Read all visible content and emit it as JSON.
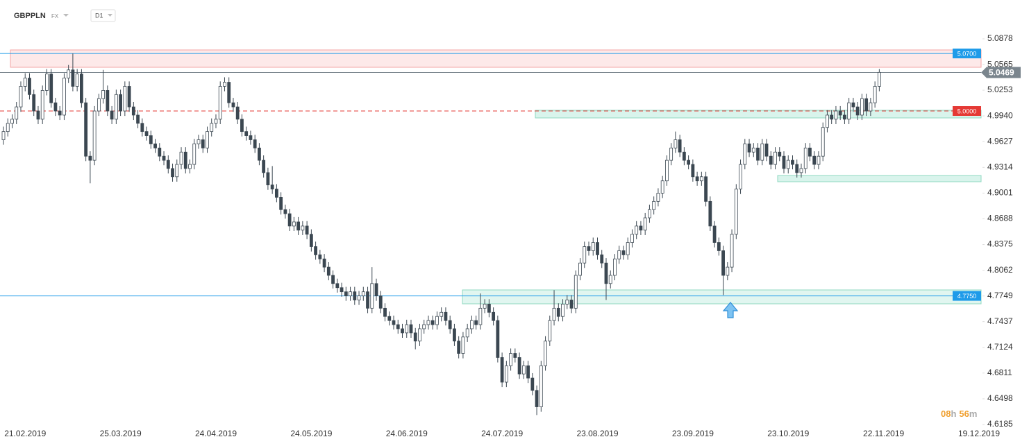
{
  "header": {
    "symbol": "GBPPLN",
    "market": "FX",
    "interval": "D1"
  },
  "chart_data": {
    "type": "candlestick",
    "categories": [
      null,
      null,
      null,
      null,
      null,
      "21.02.2019",
      null,
      null,
      null,
      null,
      null,
      null,
      null,
      null,
      null,
      null,
      null,
      null,
      null,
      null,
      null,
      null,
      null,
      null,
      null,
      null,
      null,
      "25.03.2019",
      null,
      null,
      null,
      null,
      null,
      null,
      null,
      null,
      null,
      null,
      null,
      null,
      null,
      null,
      null,
      null,
      null,
      null,
      null,
      null,
      null,
      "24.04.2019",
      null,
      null,
      null,
      null,
      null,
      null,
      null,
      null,
      null,
      null,
      null,
      null,
      null,
      null,
      null,
      null,
      null,
      null,
      null,
      null,
      null,
      "24.05.2019",
      null,
      null,
      null,
      null,
      null,
      null,
      null,
      null,
      null,
      null,
      null,
      null,
      null,
      null,
      null,
      null,
      null,
      null,
      null,
      null,
      null,
      "24.06.2019",
      null,
      null,
      null,
      null,
      null,
      null,
      null,
      null,
      null,
      null,
      null,
      null,
      null,
      null,
      null,
      null,
      null,
      null,
      null,
      null,
      null,
      "24.07.2019",
      null,
      null,
      null,
      null,
      null,
      null,
      null,
      null,
      null,
      null,
      null,
      null,
      null,
      null,
      null,
      null,
      null,
      null,
      null,
      null,
      null,
      "23.08.2019",
      null,
      null,
      null,
      null,
      null,
      null,
      null,
      null,
      null,
      null,
      null,
      null,
      null,
      null,
      null,
      null,
      null,
      null,
      null,
      null,
      null,
      "23.09.2019",
      null,
      null,
      null,
      null,
      null,
      null,
      null,
      null,
      null,
      null,
      null,
      null,
      null,
      null,
      null,
      null,
      null,
      null,
      null,
      null,
      null,
      "23.10.2019",
      null,
      null,
      null,
      null,
      null,
      null,
      null,
      null,
      null,
      null,
      null,
      null,
      null,
      null,
      null,
      null,
      null,
      null,
      null,
      null,
      null,
      "22.11.2019",
      null,
      null,
      null,
      null,
      null,
      null,
      null,
      null,
      null,
      null,
      null,
      null,
      null,
      null,
      null,
      null,
      null,
      null,
      null,
      null,
      null,
      "19.12.2019"
    ],
    "open": [
      4.965,
      4.975,
      4.985,
      4.99,
      5.005,
      5.03,
      5.04,
      5.02,
      5.0,
      4.99,
      5.025,
      5.045,
      5.01,
      5.0,
      4.995,
      5.04,
      5.05,
      5.03,
      5.045,
      5.01,
      4.945,
      4.94,
      5.0,
      5.015,
      5.025,
      5.0,
      4.99,
      5.02,
      5.0,
      5.03,
      5.005,
      4.995,
      4.985,
      4.975,
      4.97,
      4.96,
      4.955,
      4.945,
      4.94,
      4.93,
      4.92,
      4.935,
      4.95,
      4.93,
      4.935,
      4.96,
      4.965,
      4.955,
      4.975,
      4.985,
      4.99,
      5.03,
      5.035,
      5.01,
      5.005,
      4.99,
      4.975,
      4.97,
      4.965,
      4.955,
      4.94,
      4.925,
      4.91,
      4.905,
      4.895,
      4.88,
      4.875,
      4.86,
      4.865,
      4.855,
      4.86,
      4.85,
      4.835,
      4.825,
      4.82,
      4.81,
      4.8,
      4.79,
      4.785,
      4.78,
      4.775,
      4.78,
      4.77,
      4.775,
      4.78,
      4.76,
      4.79,
      4.775,
      4.76,
      4.75,
      4.745,
      4.74,
      4.735,
      4.73,
      4.74,
      4.73,
      4.72,
      4.735,
      4.74,
      4.745,
      4.74,
      4.75,
      4.755,
      4.745,
      4.735,
      4.72,
      4.705,
      4.725,
      4.735,
      4.745,
      4.74,
      4.76,
      4.765,
      4.755,
      4.745,
      4.7,
      4.67,
      4.69,
      4.705,
      4.7,
      4.68,
      4.69,
      4.675,
      4.66,
      4.64,
      4.69,
      4.72,
      4.745,
      4.76,
      4.75,
      4.765,
      4.77,
      4.76,
      4.8,
      4.815,
      4.835,
      4.83,
      4.84,
      4.825,
      4.815,
      4.79,
      4.8,
      4.82,
      4.83,
      4.825,
      4.84,
      4.85,
      4.86,
      4.855,
      4.87,
      4.88,
      4.89,
      4.9,
      4.915,
      4.94,
      4.955,
      4.965,
      4.95,
      4.94,
      4.935,
      4.92,
      4.915,
      4.92,
      4.89,
      4.86,
      4.84,
      4.83,
      4.8,
      4.81,
      4.85,
      4.905,
      4.935,
      4.96,
      4.95,
      4.955,
      4.94,
      4.96,
      4.945,
      4.935,
      4.95,
      4.945,
      4.93,
      4.94,
      4.935,
      4.925,
      4.93,
      4.955,
      4.945,
      4.935,
      4.945,
      4.98,
      4.995,
      4.99,
      5.0,
      4.995,
      4.99,
      5.01,
      5.005,
      4.995,
      5.015,
      5.0,
      5.01,
      5.03,
      null,
      null,
      null,
      null,
      null,
      null,
      null,
      null,
      null,
      null,
      null,
      null,
      null,
      null,
      null,
      null,
      null,
      null,
      null,
      null,
      null,
      null,
      null
    ],
    "high": [
      4.981,
      4.991,
      4.996,
      5.011,
      5.036,
      5.046,
      5.046,
      5.026,
      5.006,
      5.031,
      5.051,
      5.051,
      5.016,
      5.006,
      5.046,
      5.056,
      5.07,
      5.051,
      5.051,
      5.016,
      4.951,
      5.006,
      5.021,
      5.05,
      5.031,
      5.006,
      5.026,
      5.026,
      5.036,
      5.036,
      5.011,
      5.001,
      4.991,
      4.981,
      4.976,
      4.966,
      4.961,
      4.951,
      4.946,
      4.936,
      4.941,
      4.956,
      4.956,
      4.941,
      4.966,
      4.971,
      4.971,
      4.981,
      4.991,
      4.996,
      5.036,
      5.041,
      5.041,
      5.016,
      5.011,
      4.996,
      4.981,
      4.976,
      4.971,
      4.961,
      4.946,
      4.931,
      4.933,
      4.911,
      4.901,
      4.886,
      4.881,
      4.871,
      4.871,
      4.866,
      4.866,
      4.856,
      4.841,
      4.831,
      4.826,
      4.816,
      4.806,
      4.796,
      4.791,
      4.786,
      4.786,
      4.786,
      4.781,
      4.786,
      4.786,
      4.81,
      4.796,
      4.781,
      4.766,
      4.756,
      4.751,
      4.746,
      4.741,
      4.746,
      4.746,
      4.736,
      4.741,
      4.746,
      4.751,
      4.751,
      4.756,
      4.761,
      4.761,
      4.751,
      4.741,
      4.726,
      4.731,
      4.741,
      4.751,
      4.751,
      4.778,
      4.771,
      4.771,
      4.761,
      4.751,
      4.706,
      4.696,
      4.711,
      4.711,
      4.706,
      4.696,
      4.696,
      4.681,
      4.666,
      4.696,
      4.726,
      4.751,
      4.782,
      4.766,
      4.771,
      4.776,
      4.776,
      4.806,
      4.821,
      4.841,
      4.841,
      4.846,
      4.846,
      4.831,
      4.821,
      4.806,
      4.826,
      4.836,
      4.836,
      4.846,
      4.856,
      4.866,
      4.866,
      4.876,
      4.886,
      4.896,
      4.906,
      4.921,
      4.946,
      4.961,
      4.975,
      4.971,
      4.956,
      4.946,
      4.941,
      4.926,
      4.926,
      4.926,
      4.896,
      4.866,
      4.846,
      4.836,
      4.816,
      4.856,
      4.911,
      4.941,
      4.966,
      4.966,
      4.961,
      4.961,
      4.966,
      4.966,
      4.951,
      4.956,
      4.956,
      4.951,
      4.946,
      4.946,
      4.941,
      4.936,
      4.961,
      4.961,
      4.951,
      4.951,
      4.986,
      5.001,
      5.001,
      5.006,
      5.006,
      5.001,
      5.016,
      5.016,
      5.011,
      5.021,
      5.021,
      5.016,
      5.036,
      5.051,
      null,
      null,
      null,
      null,
      null,
      null,
      null,
      null,
      null,
      null,
      null,
      null,
      null,
      null,
      null,
      null,
      null,
      null,
      null,
      null,
      null,
      null,
      null
    ],
    "low": [
      4.959,
      4.969,
      4.979,
      4.984,
      4.999,
      5.024,
      5.014,
      4.994,
      4.984,
      4.984,
      5.019,
      5.004,
      4.994,
      4.989,
      4.989,
      5.034,
      5.024,
      5.024,
      5.004,
      4.939,
      4.912,
      4.934,
      4.994,
      5.009,
      4.994,
      4.984,
      4.984,
      4.994,
      4.994,
      4.999,
      4.989,
      4.979,
      4.969,
      4.964,
      4.954,
      4.949,
      4.939,
      4.934,
      4.924,
      4.914,
      4.914,
      4.929,
      4.924,
      4.924,
      4.929,
      4.954,
      4.949,
      4.949,
      4.969,
      4.979,
      4.984,
      5.024,
      5.004,
      4.999,
      4.984,
      4.969,
      4.964,
      4.959,
      4.949,
      4.934,
      4.919,
      4.904,
      4.899,
      4.889,
      4.874,
      4.869,
      4.854,
      4.854,
      4.849,
      4.849,
      4.844,
      4.829,
      4.819,
      4.814,
      4.804,
      4.794,
      4.784,
      4.779,
      4.774,
      4.769,
      4.769,
      4.764,
      4.764,
      4.769,
      4.754,
      4.754,
      4.769,
      4.754,
      4.744,
      4.739,
      4.734,
      4.729,
      4.724,
      4.724,
      4.724,
      4.71,
      4.714,
      4.729,
      4.734,
      4.734,
      4.734,
      4.744,
      4.739,
      4.729,
      4.714,
      4.699,
      4.699,
      4.719,
      4.729,
      4.734,
      4.734,
      4.754,
      4.749,
      4.739,
      4.694,
      4.664,
      4.664,
      4.684,
      4.694,
      4.674,
      4.674,
      4.669,
      4.654,
      4.63,
      4.634,
      4.684,
      4.714,
      4.739,
      4.744,
      4.744,
      4.759,
      4.754,
      4.754,
      4.794,
      4.809,
      4.824,
      4.824,
      4.819,
      4.809,
      4.77,
      4.784,
      4.794,
      4.814,
      4.819,
      4.819,
      4.834,
      4.844,
      4.849,
      4.849,
      4.864,
      4.874,
      4.884,
      4.894,
      4.909,
      4.934,
      4.949,
      4.944,
      4.934,
      4.929,
      4.914,
      4.909,
      4.909,
      4.884,
      4.854,
      4.834,
      4.824,
      4.776,
      4.794,
      4.804,
      4.844,
      4.899,
      4.929,
      4.944,
      4.944,
      4.934,
      4.934,
      4.939,
      4.929,
      4.929,
      4.939,
      4.924,
      4.924,
      4.929,
      4.919,
      4.919,
      4.924,
      4.939,
      4.929,
      4.929,
      4.939,
      4.974,
      4.984,
      4.984,
      4.989,
      4.984,
      4.984,
      4.999,
      4.989,
      4.989,
      4.994,
      4.994,
      5.004,
      5.024,
      null,
      null,
      null,
      null,
      null,
      null,
      null,
      null,
      null,
      null,
      null,
      null,
      null,
      null,
      null,
      null,
      null,
      null,
      null,
      null,
      null,
      null,
      null
    ],
    "close": [
      4.975,
      4.985,
      4.99,
      5.005,
      5.03,
      5.04,
      5.02,
      5.0,
      4.99,
      5.025,
      5.045,
      5.01,
      5.0,
      4.995,
      5.04,
      5.05,
      5.03,
      5.045,
      5.01,
      4.945,
      4.94,
      5.0,
      5.015,
      5.025,
      5.0,
      4.99,
      5.02,
      5.0,
      5.03,
      5.005,
      4.995,
      4.985,
      4.975,
      4.97,
      4.96,
      4.955,
      4.945,
      4.94,
      4.93,
      4.92,
      4.935,
      4.95,
      4.93,
      4.935,
      4.96,
      4.965,
      4.955,
      4.975,
      4.985,
      4.99,
      5.03,
      5.035,
      5.01,
      5.005,
      4.99,
      4.975,
      4.97,
      4.965,
      4.955,
      4.94,
      4.925,
      4.91,
      4.905,
      4.895,
      4.88,
      4.875,
      4.86,
      4.865,
      4.855,
      4.86,
      4.85,
      4.835,
      4.825,
      4.82,
      4.81,
      4.8,
      4.79,
      4.785,
      4.78,
      4.775,
      4.78,
      4.77,
      4.775,
      4.78,
      4.76,
      4.79,
      4.775,
      4.76,
      4.75,
      4.745,
      4.74,
      4.735,
      4.73,
      4.74,
      4.73,
      4.72,
      4.735,
      4.74,
      4.745,
      4.74,
      4.75,
      4.755,
      4.745,
      4.735,
      4.72,
      4.705,
      4.725,
      4.735,
      4.745,
      4.74,
      4.76,
      4.765,
      4.755,
      4.745,
      4.7,
      4.67,
      4.69,
      4.705,
      4.7,
      4.68,
      4.69,
      4.675,
      4.66,
      4.64,
      4.69,
      4.72,
      4.745,
      4.76,
      4.75,
      4.765,
      4.77,
      4.76,
      4.8,
      4.815,
      4.835,
      4.83,
      4.84,
      4.825,
      4.815,
      4.79,
      4.8,
      4.82,
      4.83,
      4.825,
      4.84,
      4.85,
      4.86,
      4.855,
      4.87,
      4.88,
      4.89,
      4.9,
      4.915,
      4.94,
      4.955,
      4.965,
      4.95,
      4.94,
      4.935,
      4.92,
      4.915,
      4.92,
      4.89,
      4.86,
      4.84,
      4.83,
      4.8,
      4.81,
      4.85,
      4.905,
      4.935,
      4.96,
      4.95,
      4.955,
      4.94,
      4.96,
      4.945,
      4.935,
      4.95,
      4.945,
      4.93,
      4.94,
      4.935,
      4.925,
      4.93,
      4.955,
      4.945,
      4.935,
      4.945,
      4.98,
      4.995,
      4.99,
      5.0,
      4.995,
      4.99,
      5.01,
      5.005,
      4.995,
      5.015,
      5.0,
      5.01,
      5.03,
      5.047,
      null,
      null,
      null,
      null,
      null,
      null,
      null,
      null,
      null,
      null,
      null,
      null,
      null,
      null,
      null,
      null,
      null,
      null,
      null,
      null,
      null,
      null,
      null
    ],
    "up_color": "#ffffff",
    "down_color": "#3b4751",
    "wick_color": "#3b4751",
    "ylim": [
      4.6185,
      5.0878
    ],
    "yticks": [
      5.0878,
      5.0565,
      5.0253,
      {
        "value": 4.994,
        "label": "4.9940"
      },
      4.9627,
      4.9314,
      4.9001,
      4.8688,
      4.8375,
      4.8062,
      4.7749,
      4.7437,
      4.7124,
      4.6811,
      4.6498,
      4.6185
    ],
    "levels": [
      {
        "value": 5.07,
        "label": "5.0700",
        "color": "#1e9be9",
        "dashed": false
      },
      {
        "value": 5.0469,
        "label": "5.0469",
        "color": "#7a858d",
        "dashed": false
      },
      {
        "value": 5,
        "label": "5.0000",
        "color": "#e53935",
        "dashed": true
      },
      {
        "value": 4.775,
        "label": "4.7750",
        "color": "#1e9be9",
        "dashed": false
      }
    ],
    "timer": [
      "08",
      "h",
      "56",
      "m"
    ]
  }
}
